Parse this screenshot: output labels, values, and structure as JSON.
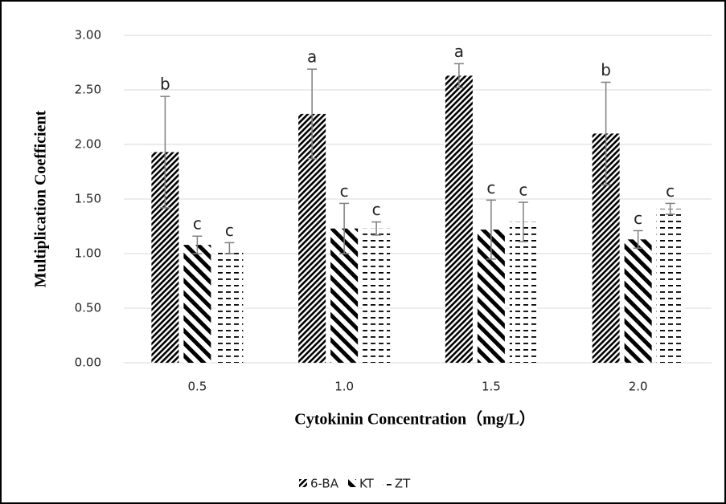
{
  "chart_data": {
    "type": "bar",
    "x_label": "Cytokinin Concentration（mg/L）",
    "y_label": "Multiplication Coefficient",
    "categories": [
      "0.5",
      "1.0",
      "1.5",
      "2.0"
    ],
    "series": [
      {
        "name": "6-BA",
        "color": "#000000",
        "values": [
          1.93,
          2.28,
          2.63,
          2.1
        ],
        "errors": [
          0.51,
          0.41,
          0.11,
          0.47
        ],
        "letters": [
          "b",
          "a",
          "a",
          "b"
        ]
      },
      {
        "name": "KT",
        "color": "#000000",
        "values": [
          1.08,
          1.23,
          1.22,
          1.13
        ],
        "errors": [
          0.08,
          0.23,
          0.27,
          0.08
        ],
        "letters": [
          "c",
          "c",
          "c",
          "c"
        ]
      },
      {
        "name": "ZT",
        "color": "#000000",
        "values": [
          1.05,
          1.23,
          1.29,
          1.41
        ],
        "errors": [
          0.05,
          0.06,
          0.18,
          0.05
        ],
        "letters": [
          "c",
          "c",
          "c",
          "c"
        ]
      }
    ],
    "ylim": [
      0,
      3
    ],
    "yticks": [
      {
        "value": 0,
        "label": "0.00"
      },
      {
        "value": 0.5,
        "label": "0.50"
      },
      {
        "value": 1,
        "label": "1.00"
      },
      {
        "value": 1.5,
        "label": "1.50"
      },
      {
        "value": 2,
        "label": "2.00"
      },
      {
        "value": 2.5,
        "label": "2.50"
      },
      {
        "value": 3,
        "label": "3.00"
      }
    ],
    "grid": true,
    "legend": "bottom"
  }
}
